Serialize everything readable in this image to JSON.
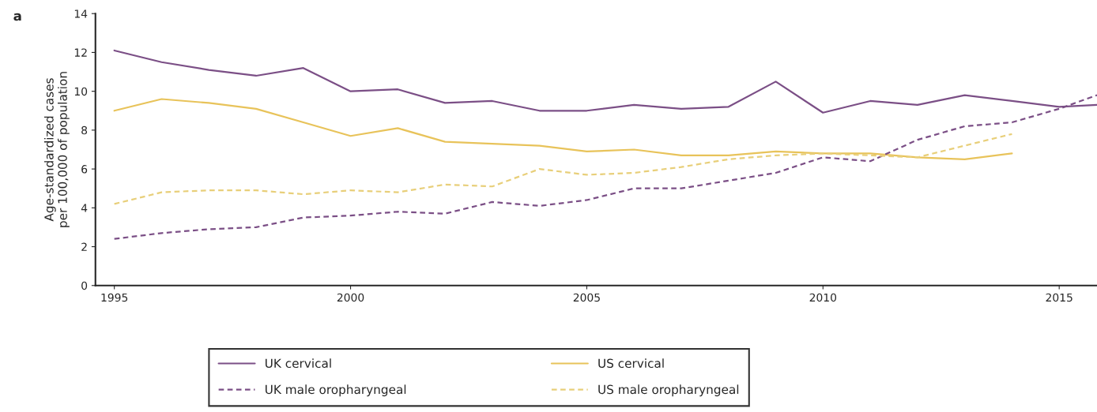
{
  "chart_data": {
    "type": "line",
    "ylabel": "Age-standardized cases\nper 100,000 of population",
    "annotations": [
      "a"
    ],
    "xlim": [
      1994.6,
      2015.8
    ],
    "xticks": [
      1995,
      2000,
      2005,
      2010,
      2015
    ],
    "ylim": [
      0,
      14
    ],
    "yticks": [
      0,
      2,
      4,
      6,
      8,
      10,
      12,
      14
    ],
    "grid": false,
    "legend": "bottom",
    "marker": "none",
    "series": [
      {
        "name": "UK cervical",
        "color": "#7b4f86",
        "line_style": "solid",
        "x": [
          1995,
          1996,
          1997,
          1998,
          1999,
          2000,
          2001,
          2002,
          2003,
          2004,
          2005,
          2006,
          2007,
          2008,
          2009,
          2010,
          2011,
          2012,
          2013,
          2014,
          2015,
          2015.8
        ],
        "values": [
          12.1,
          11.5,
          11.1,
          10.8,
          11.2,
          10.0,
          10.1,
          9.4,
          9.5,
          9.0,
          9.0,
          9.3,
          9.1,
          9.2,
          10.5,
          8.9,
          9.5,
          9.3,
          9.8,
          9.5,
          9.2,
          9.3
        ]
      },
      {
        "name": "US cervical",
        "color": "#e8c35a",
        "line_style": "solid",
        "x": [
          1995,
          1996,
          1997,
          1998,
          1999,
          2000,
          2001,
          2002,
          2003,
          2004,
          2005,
          2006,
          2007,
          2008,
          2009,
          2010,
          2011,
          2012,
          2013,
          2014
        ],
        "values": [
          9.0,
          9.6,
          9.4,
          9.1,
          8.4,
          7.7,
          8.1,
          7.4,
          7.3,
          7.2,
          6.9,
          7.0,
          6.7,
          6.7,
          6.9,
          6.8,
          6.8,
          6.6,
          6.5,
          6.8
        ]
      },
      {
        "name": "UK male oropharyngeal",
        "color": "#7b4f86",
        "line_style": "dashed",
        "x": [
          1995,
          1996,
          1997,
          1998,
          1999,
          2000,
          2001,
          2002,
          2003,
          2004,
          2005,
          2006,
          2007,
          2008,
          2009,
          2010,
          2011,
          2012,
          2013,
          2014,
          2015,
          2015.8
        ],
        "values": [
          2.4,
          2.7,
          2.9,
          3.0,
          3.5,
          3.6,
          3.8,
          3.7,
          4.3,
          4.1,
          4.4,
          5.0,
          5.0,
          5.4,
          5.8,
          6.6,
          6.4,
          7.5,
          8.2,
          8.4,
          9.1,
          9.8
        ]
      },
      {
        "name": "US male oropharyngeal",
        "color": "#e8cf7a",
        "line_style": "dashed",
        "x": [
          1995,
          1996,
          1997,
          1998,
          1999,
          2000,
          2001,
          2002,
          2003,
          2004,
          2005,
          2006,
          2007,
          2008,
          2009,
          2010,
          2011,
          2012,
          2013,
          2014
        ],
        "values": [
          4.2,
          4.8,
          4.9,
          4.9,
          4.7,
          4.9,
          4.8,
          5.2,
          5.1,
          6.0,
          5.7,
          5.8,
          6.1,
          6.5,
          6.7,
          6.8,
          6.7,
          6.6,
          7.2,
          7.8
        ]
      }
    ]
  }
}
